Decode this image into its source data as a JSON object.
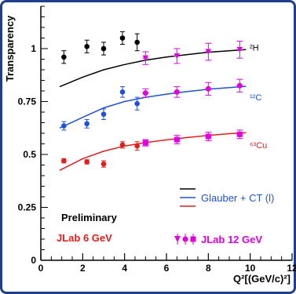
{
  "chart_data": {
    "type": "scatter",
    "title": "",
    "xlabel": "Q²[(GeV/c)²]",
    "ylabel": "Transparency",
    "xlim": [
      0,
      12
    ],
    "ylim": [
      0,
      1.2
    ],
    "x_ticks": [
      0,
      2,
      4,
      6,
      8,
      10,
      12
    ],
    "y_ticks": [
      0,
      0.25,
      0.5,
      0.75,
      1
    ],
    "grid": false,
    "nuclei": [
      {
        "name": "²H",
        "color": "#000000",
        "curve_color": "#000000",
        "jlab6": [
          {
            "x": 1.1,
            "y": 0.96,
            "err": 0.03
          },
          {
            "x": 2.2,
            "y": 1.01,
            "err": 0.03
          },
          {
            "x": 3.0,
            "y": 1.0,
            "err": 0.03
          },
          {
            "x": 3.9,
            "y": 1.05,
            "err": 0.03
          },
          {
            "x": 4.6,
            "y": 1.03,
            "err": 0.04
          }
        ],
        "jlab12_color": "#e000e0",
        "jlab12": [
          {
            "x": 5.0,
            "y": 0.955,
            "err": 0.03
          },
          {
            "x": 6.5,
            "y": 0.965,
            "err": 0.035
          },
          {
            "x": 8.0,
            "y": 0.985,
            "err": 0.04
          },
          {
            "x": 9.5,
            "y": 0.995,
            "err": 0.04
          }
        ],
        "curve": [
          {
            "x": 0.9,
            "y": 0.82
          },
          {
            "x": 2,
            "y": 0.865
          },
          {
            "x": 3,
            "y": 0.9
          },
          {
            "x": 4,
            "y": 0.925
          },
          {
            "x": 5,
            "y": 0.945
          },
          {
            "x": 6,
            "y": 0.96
          },
          {
            "x": 7,
            "y": 0.972
          },
          {
            "x": 8,
            "y": 0.983
          },
          {
            "x": 9,
            "y": 0.99
          },
          {
            "x": 9.8,
            "y": 0.995
          }
        ]
      },
      {
        "name": "¹²C",
        "color": "#1e50dc",
        "curve_color": "#1e50dc",
        "jlab6": [
          {
            "x": 1.1,
            "y": 0.635,
            "err": 0.02
          },
          {
            "x": 2.2,
            "y": 0.645,
            "err": 0.02
          },
          {
            "x": 3.0,
            "y": 0.69,
            "err": 0.025
          },
          {
            "x": 3.9,
            "y": 0.795,
            "err": 0.025
          },
          {
            "x": 4.6,
            "y": 0.74,
            "err": 0.03
          }
        ],
        "jlab12_color": "#e000e0",
        "jlab12": [
          {
            "x": 5.0,
            "y": 0.79,
            "err": 0.02
          },
          {
            "x": 6.5,
            "y": 0.795,
            "err": 0.025
          },
          {
            "x": 8.0,
            "y": 0.81,
            "err": 0.03
          },
          {
            "x": 9.5,
            "y": 0.825,
            "err": 0.03
          }
        ],
        "curve": [
          {
            "x": 0.9,
            "y": 0.625
          },
          {
            "x": 2,
            "y": 0.675
          },
          {
            "x": 3,
            "y": 0.72
          },
          {
            "x": 4,
            "y": 0.75
          },
          {
            "x": 5,
            "y": 0.77
          },
          {
            "x": 6,
            "y": 0.785
          },
          {
            "x": 7,
            "y": 0.797
          },
          {
            "x": 8,
            "y": 0.808
          },
          {
            "x": 9,
            "y": 0.816
          },
          {
            "x": 9.8,
            "y": 0.822
          }
        ]
      },
      {
        "name": "⁶³Cu",
        "color": "#e51c1c",
        "curve_color": "#e51c1c",
        "jlab6": [
          {
            "x": 1.1,
            "y": 0.47,
            "err": 0.01
          },
          {
            "x": 2.2,
            "y": 0.465,
            "err": 0.01
          },
          {
            "x": 3.0,
            "y": 0.455,
            "err": 0.015
          },
          {
            "x": 3.9,
            "y": 0.545,
            "err": 0.015
          },
          {
            "x": 4.6,
            "y": 0.54,
            "err": 0.02
          }
        ],
        "jlab12_color": "#e000e0",
        "jlab12": [
          {
            "x": 5.0,
            "y": 0.555,
            "err": 0.015
          },
          {
            "x": 6.5,
            "y": 0.57,
            "err": 0.02
          },
          {
            "x": 8.0,
            "y": 0.585,
            "err": 0.02
          },
          {
            "x": 9.5,
            "y": 0.595,
            "err": 0.02
          }
        ],
        "curve": [
          {
            "x": 0.9,
            "y": 0.425
          },
          {
            "x": 2,
            "y": 0.48
          },
          {
            "x": 3,
            "y": 0.515
          },
          {
            "x": 4,
            "y": 0.54
          },
          {
            "x": 5,
            "y": 0.556
          },
          {
            "x": 6,
            "y": 0.569
          },
          {
            "x": 7,
            "y": 0.58
          },
          {
            "x": 8,
            "y": 0.59
          },
          {
            "x": 9,
            "y": 0.598
          },
          {
            "x": 9.8,
            "y": 0.603
          }
        ]
      }
    ],
    "legend": {
      "curve_label": "Glauber + CT (l)",
      "preliminary": "Preliminary",
      "jlab6_label": "JLab 6 GeV",
      "jlab12_label": "JLab 12 GeV"
    }
  }
}
